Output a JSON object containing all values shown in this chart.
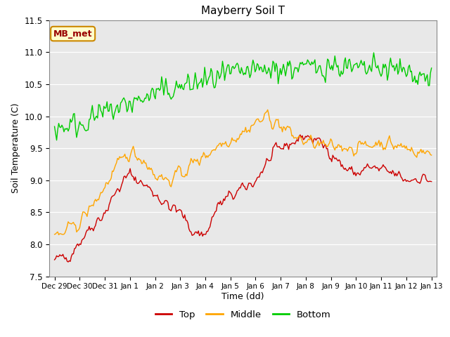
{
  "title": "Mayberry Soil T",
  "xlabel": "Time (dd)",
  "ylabel": "Soil Temperature (C)",
  "ylim": [
    7.5,
    11.5
  ],
  "xtick_labels": [
    "Dec 29",
    "Dec 30",
    "Dec 31",
    "Jan 1",
    "Jan 2",
    "Jan 3",
    "Jan 4",
    "Jan 5",
    "Jan 6",
    "Jan 7",
    "Jan 8",
    "Jan 9",
    "Jan 10",
    "Jan 11",
    "Jan 12",
    "Jan 13"
  ],
  "xtick_positions": [
    0,
    1,
    2,
    3,
    4,
    5,
    6,
    7,
    8,
    9,
    10,
    11,
    12,
    13,
    14,
    15
  ],
  "ytick_positions": [
    7.5,
    8.0,
    8.5,
    9.0,
    9.5,
    10.0,
    10.5,
    11.0,
    11.5
  ],
  "ytick_labels": [
    "7.5",
    "8.0",
    "8.5",
    "9.0",
    "9.5",
    "10.0",
    "10.5",
    "11.0",
    "11.5"
  ],
  "legend_label_top": "Top",
  "legend_label_middle": "Middle",
  "legend_label_bottom": "Bottom",
  "color_top": "#cc0000",
  "color_middle": "#ffa500",
  "color_bottom": "#00cc00",
  "annotation_text": "MB_met",
  "annotation_bg": "#ffffcc",
  "annotation_border": "#cc8800",
  "bg_color": "#e8e8e8",
  "linewidth": 1.0,
  "n_points": 360
}
